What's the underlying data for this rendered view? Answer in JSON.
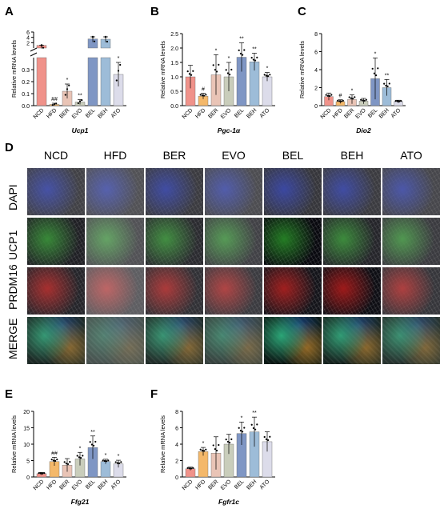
{
  "figure": {
    "panel_letters": {
      "a": "A",
      "b": "B",
      "c": "C",
      "d": "D",
      "e": "E",
      "f": "F"
    },
    "colors": {
      "NCD": "#f0928a",
      "HFD": "#f4b86a",
      "BER": "#e9c4b6",
      "EVO": "#c9cdbb",
      "BEL": "#7f96c4",
      "BEH": "#9dbcd8",
      "ATO": "#dcdcea"
    }
  },
  "chart_data": [
    {
      "type": "bar",
      "panel": "A",
      "categories": [
        "NCD",
        "HFD",
        "BER",
        "EVO",
        "BEL",
        "BEH",
        "ATO"
      ],
      "values": [
        1.0,
        0.01,
        0.12,
        0.03,
        3.4,
        3.3,
        0.26
      ],
      "errors": [
        0.02,
        0.01,
        0.06,
        0.02,
        0.8,
        0.9,
        0.1
      ],
      "significance": [
        "",
        "##",
        "*",
        "**",
        "",
        "",
        "*"
      ],
      "ylabel": "Relative mRNA levels",
      "xlabel": "Ucp1",
      "yticks": [
        "0.0",
        "0.1",
        "0.2",
        "0.3",
        "2",
        "4",
        "6"
      ],
      "axis_break": true
    },
    {
      "type": "bar",
      "panel": "B",
      "categories": [
        "NCD",
        "HFD",
        "BER",
        "EVO",
        "BEL",
        "BEH",
        "ATO"
      ],
      "values": [
        1.0,
        0.33,
        1.07,
        1.0,
        1.68,
        1.52,
        1.0
      ],
      "errors": [
        0.4,
        0.1,
        0.7,
        0.5,
        0.5,
        0.3,
        0.15
      ],
      "significance": [
        "",
        "#",
        "*",
        "*",
        "**",
        "**",
        "*"
      ],
      "ylabel": "Relative mRNA levels",
      "xlabel": "Pgc-1α",
      "ylim": [
        0,
        2.5
      ],
      "yticks": [
        "0.0",
        "0.5",
        "1.0",
        "1.5",
        "2.0",
        "2.5"
      ]
    },
    {
      "type": "bar",
      "panel": "C",
      "categories": [
        "NCD",
        "HFD",
        "BER",
        "EVO",
        "BEL",
        "BEH",
        "ATO"
      ],
      "values": [
        1.0,
        0.45,
        0.7,
        0.5,
        3.0,
        2.0,
        0.45
      ],
      "errors": [
        0.4,
        0.2,
        0.5,
        0.3,
        2.3,
        0.9,
        0.15
      ],
      "significance": [
        "",
        "#",
        "*",
        "",
        "*",
        "**",
        ""
      ],
      "ylabel": "Relative mRNA levels",
      "xlabel": "Dio2",
      "ylim": [
        0,
        8
      ],
      "yticks": [
        "0",
        "2",
        "4",
        "6",
        "8"
      ]
    },
    {
      "type": "bar",
      "panel": "E",
      "categories": [
        "NCD",
        "HFD",
        "BER",
        "EVO",
        "BEL",
        "BEH",
        "ATO"
      ],
      "values": [
        1.0,
        4.7,
        3.6,
        5.5,
        9.0,
        4.7,
        4.0
      ],
      "errors": [
        0.4,
        1.3,
        2.0,
        2.0,
        3.5,
        0.7,
        1.1
      ],
      "significance": [
        "",
        "##",
        "",
        "*",
        "**",
        "*",
        "*"
      ],
      "ylabel": "Relative mRNA levels",
      "xlabel": "Ffg21",
      "ylim": [
        0,
        20
      ],
      "yticks": [
        "0",
        "5",
        "10",
        "15",
        "20"
      ]
    },
    {
      "type": "bar",
      "panel": "F",
      "categories": [
        "NCD",
        "HFD",
        "BER",
        "EVO",
        "BEL",
        "BEH",
        "ATO"
      ],
      "values": [
        1.0,
        3.1,
        2.9,
        4.0,
        5.3,
        5.5,
        4.3
      ],
      "errors": [
        0.2,
        0.5,
        2.0,
        1.2,
        1.4,
        1.8,
        1.2
      ],
      "significance": [
        "",
        "*",
        "",
        "",
        "*",
        "**",
        ""
      ],
      "ylabel": "Relative mRNA levels",
      "xlabel": "Fgfr1c",
      "ylim": [
        0,
        8
      ],
      "yticks": [
        "0",
        "2",
        "4",
        "6",
        "8"
      ]
    }
  ],
  "microscopy": {
    "columns": [
      "NCD",
      "HFD",
      "BER",
      "EVO",
      "BEL",
      "BEH",
      "ATO"
    ],
    "rows": [
      "DAPI",
      "UCP1",
      "PRDM16",
      "MERGE"
    ],
    "row_colors": {
      "DAPI": "#0a1a8a",
      "UCP1": "#1f7a1f",
      "PRDM16": "#9a1010",
      "MERGE": "#1b5a4a"
    },
    "intensity": [
      [
        0.45,
        0.3,
        0.5,
        0.35,
        0.55,
        0.5,
        0.4
      ],
      [
        0.75,
        0.3,
        0.65,
        0.45,
        0.95,
        0.7,
        0.5
      ],
      [
        0.7,
        0.2,
        0.6,
        0.5,
        0.85,
        0.9,
        0.55
      ],
      [
        0.8,
        0.4,
        0.75,
        0.55,
        0.95,
        0.85,
        0.7
      ]
    ]
  }
}
